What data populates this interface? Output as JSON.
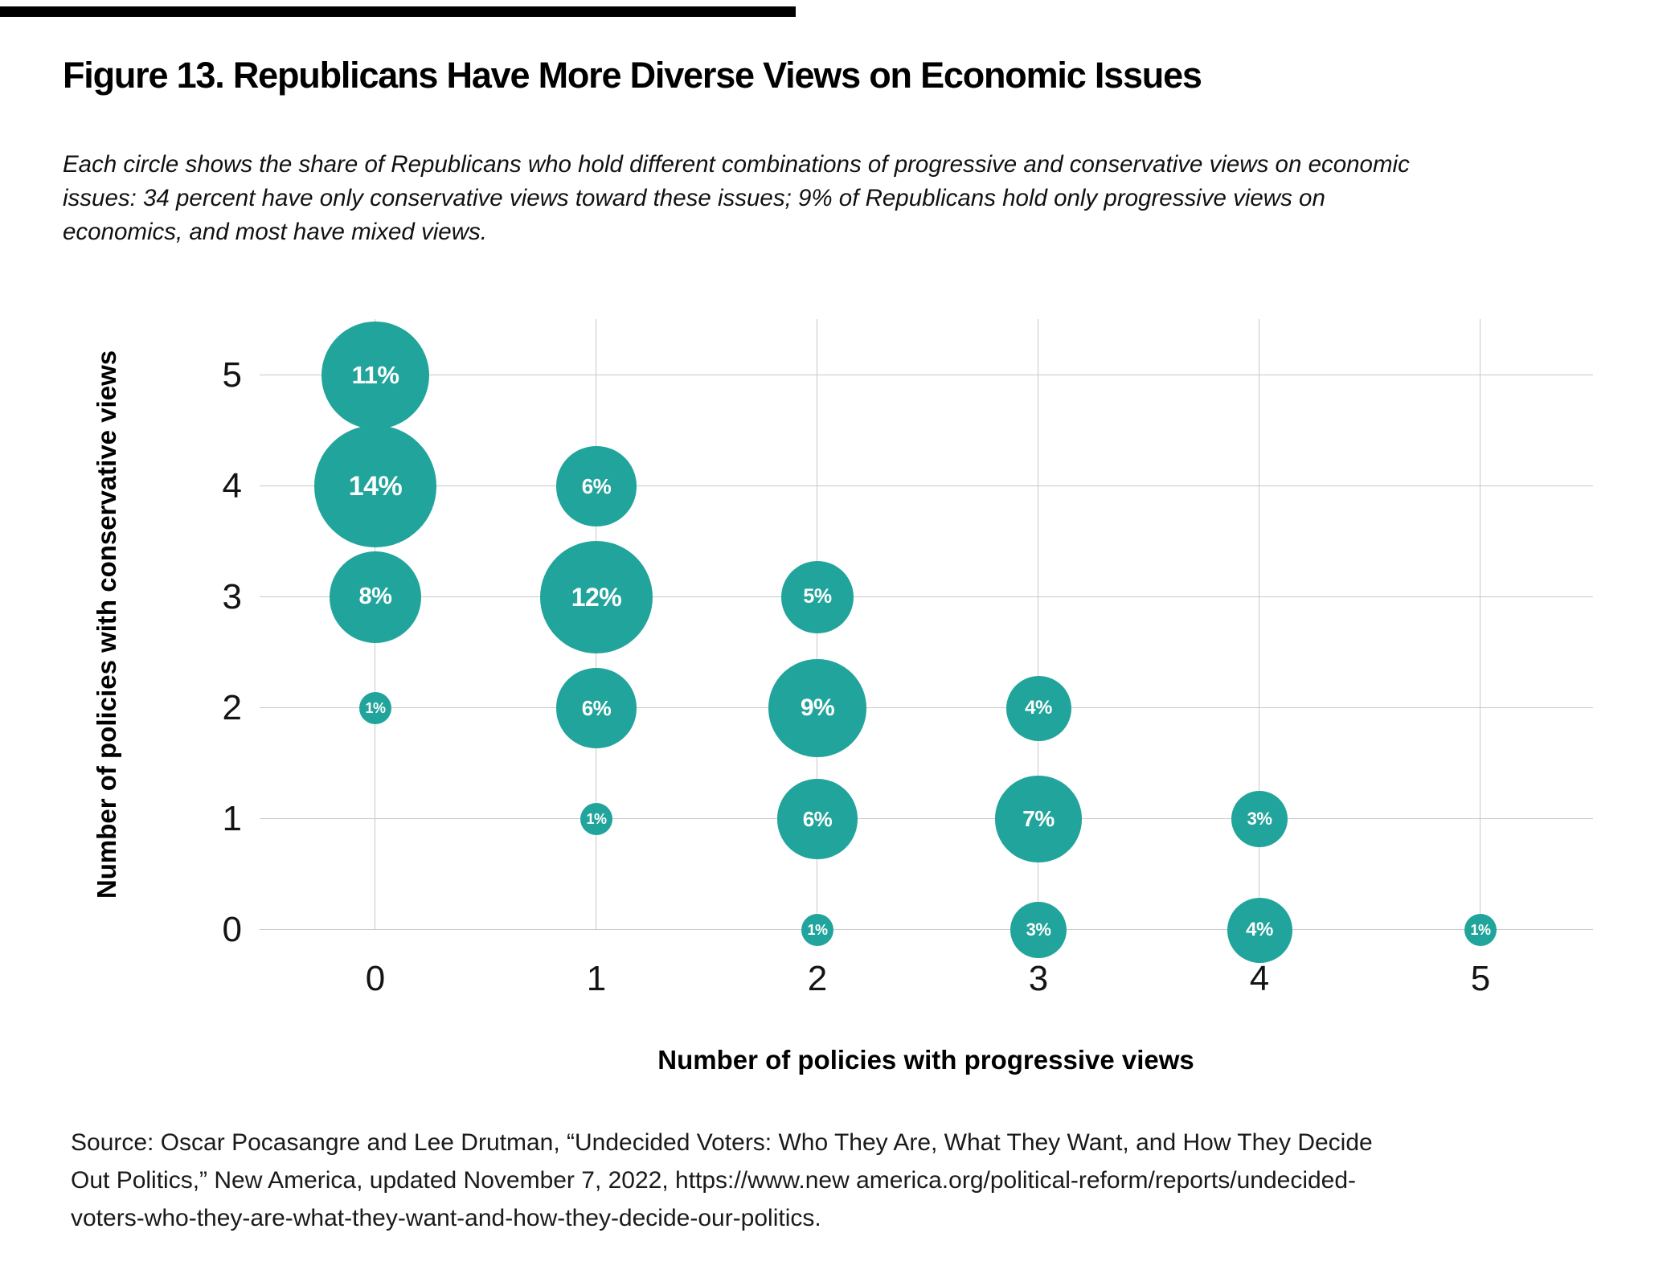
{
  "figure": {
    "title": "Figure 13. Republicans Have More Diverse Views on Economic Issues",
    "subtitle_lines": [
      "Each circle shows the share of Republicans who hold different combinations of progressive and conservative views on economic",
      "issues: 34 percent have only conservative views toward these issues; 9% of Republicans hold only progressive views on",
      "economics, and most have mixed views."
    ],
    "source_lines": [
      "Source: Oscar Pocasangre and Lee Drutman, “Undecided Voters: Who They Are, What They Want, and How They Decide",
      "Out Politics,” New America, updated November 7, 2022, https://www.new america.org/political-reform/reports/undecided-",
      "voters-who-they-are-what-they-want-and-how-they-decide-our-politics."
    ]
  },
  "chart_data": {
    "type": "scatter",
    "subtype": "bubble",
    "title": "Figure 13. Republicans Have More Diverse Views on Economic Issues",
    "xlabel": "Number of policies with progressive views",
    "ylabel": "Number of policies with conservative views",
    "x_ticks": [
      "0",
      "1",
      "2",
      "3",
      "4",
      "5"
    ],
    "y_ticks": [
      "0",
      "1",
      "2",
      "3",
      "4",
      "5"
    ],
    "xlim": [
      -0.5,
      5.5
    ],
    "ylim": [
      0,
      5.5
    ],
    "grid": true,
    "legend": false,
    "bubble_color": "#21a49b",
    "bubble_label_color": "#ffffff",
    "gridline_color": "#c8c8c8",
    "size_rule": "diameter_px = 40.5 * sqrt(value_percent)",
    "points": [
      {
        "x": 0,
        "y": 5,
        "value": 11,
        "label": "11%"
      },
      {
        "x": 0,
        "y": 4,
        "value": 14,
        "label": "14%"
      },
      {
        "x": 0,
        "y": 3,
        "value": 8,
        "label": "8%"
      },
      {
        "x": 0,
        "y": 2,
        "value": 1,
        "label": "1%"
      },
      {
        "x": 1,
        "y": 4,
        "value": 6,
        "label": "6%"
      },
      {
        "x": 1,
        "y": 3,
        "value": 12,
        "label": "12%"
      },
      {
        "x": 1,
        "y": 2,
        "value": 6,
        "label": "6%"
      },
      {
        "x": 1,
        "y": 1,
        "value": 1,
        "label": "1%"
      },
      {
        "x": 2,
        "y": 3,
        "value": 5,
        "label": "5%"
      },
      {
        "x": 2,
        "y": 2,
        "value": 9,
        "label": "9%"
      },
      {
        "x": 2,
        "y": 1,
        "value": 6,
        "label": "6%"
      },
      {
        "x": 2,
        "y": 0,
        "value": 1,
        "label": "1%"
      },
      {
        "x": 3,
        "y": 2,
        "value": 4,
        "label": "4%"
      },
      {
        "x": 3,
        "y": 1,
        "value": 7,
        "label": "7%"
      },
      {
        "x": 3,
        "y": 0,
        "value": 3,
        "label": "3%"
      },
      {
        "x": 4,
        "y": 1,
        "value": 3,
        "label": "3%"
      },
      {
        "x": 4,
        "y": 0,
        "value": 4,
        "label": "4%"
      },
      {
        "x": 5,
        "y": 0,
        "value": 1,
        "label": "1%"
      }
    ]
  }
}
